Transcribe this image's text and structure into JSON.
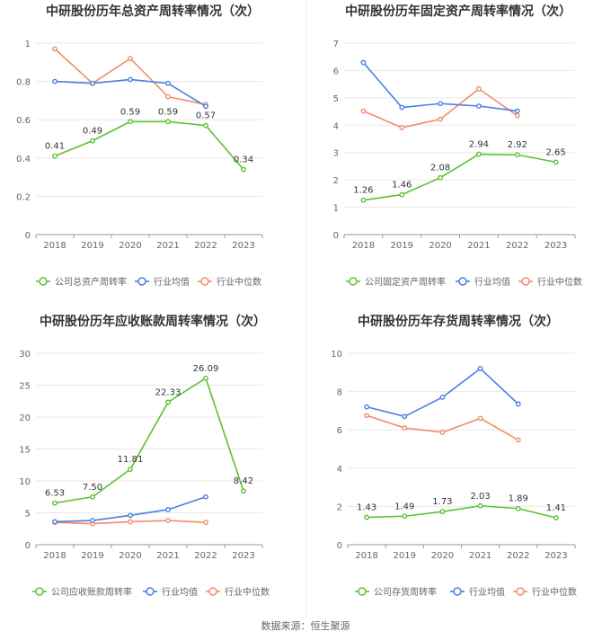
{
  "colors": {
    "company": "#5cc233",
    "industry_avg": "#4a7fe0",
    "industry_median": "#f28c6b",
    "grid": "#e8e8e8",
    "axis": "#999999",
    "text": "#666666",
    "title": "#333333"
  },
  "source_text": "数据来源：恒生聚源",
  "chart_data": [
    {
      "type": "line",
      "title": "中研股份历年总资产周转率情况（次）",
      "categories": [
        "2018",
        "2019",
        "2020",
        "2021",
        "2022",
        "2023"
      ],
      "ylim": [
        0,
        1
      ],
      "yticks": [
        "0",
        "0.2",
        "0.4",
        "0.6",
        "0.8",
        "1"
      ],
      "series": [
        {
          "name": "公司总资产周转率",
          "key": "company",
          "values": [
            0.41,
            0.49,
            0.59,
            0.59,
            0.57,
            0.34
          ],
          "labels": [
            "0.41",
            "0.49",
            "0.59",
            "0.59",
            "0.57",
            "0.34"
          ]
        },
        {
          "name": "行业均值",
          "key": "industry_avg",
          "values": [
            0.8,
            0.79,
            0.81,
            0.79,
            0.67,
            null
          ]
        },
        {
          "name": "行业中位数",
          "key": "industry_median",
          "values": [
            0.97,
            0.79,
            0.92,
            0.72,
            0.68,
            null
          ]
        }
      ]
    },
    {
      "type": "line",
      "title": "中研股份历年固定资产周转率情况（次）",
      "categories": [
        "2018",
        "2019",
        "2020",
        "2021",
        "2022",
        "2023"
      ],
      "ylim": [
        0,
        7
      ],
      "yticks": [
        "0",
        "1",
        "2",
        "3",
        "4",
        "5",
        "6",
        "7"
      ],
      "series": [
        {
          "name": "公司固定资产周转率",
          "key": "company",
          "values": [
            1.26,
            1.46,
            2.08,
            2.94,
            2.92,
            2.65
          ],
          "labels": [
            "1.26",
            "1.46",
            "2.08",
            "2.94",
            "2.92",
            "2.65"
          ]
        },
        {
          "name": "行业均值",
          "key": "industry_avg",
          "values": [
            6.29,
            4.65,
            4.79,
            4.7,
            4.52,
            null
          ]
        },
        {
          "name": "行业中位数",
          "key": "industry_median",
          "values": [
            4.52,
            3.91,
            4.22,
            5.33,
            4.35,
            null
          ]
        }
      ]
    },
    {
      "type": "line",
      "title": "中研股份历年应收账款周转率情况（次）",
      "categories": [
        "2018",
        "2019",
        "2020",
        "2021",
        "2022",
        "2023"
      ],
      "ylim": [
        0,
        30
      ],
      "yticks": [
        "0",
        "5",
        "10",
        "15",
        "20",
        "25",
        "30"
      ],
      "series": [
        {
          "name": "公司应收账款周转率",
          "key": "company",
          "values": [
            6.53,
            7.5,
            11.81,
            22.33,
            26.09,
            8.42
          ],
          "labels": [
            "6.53",
            "7.50",
            "11.81",
            "22.33",
            "26.09",
            "8.42"
          ]
        },
        {
          "name": "行业均值",
          "key": "industry_avg",
          "values": [
            3.6,
            3.8,
            4.6,
            5.5,
            7.5,
            null
          ]
        },
        {
          "name": "行业中位数",
          "key": "industry_median",
          "values": [
            3.5,
            3.3,
            3.6,
            3.8,
            3.5,
            null
          ]
        }
      ]
    },
    {
      "type": "line",
      "title": "中研股份历年存货周转率情况（次）",
      "categories": [
        "2018",
        "2019",
        "2020",
        "2021",
        "2022",
        "2023"
      ],
      "ylim": [
        0,
        10
      ],
      "yticks": [
        "0",
        "2",
        "4",
        "6",
        "8",
        "10"
      ],
      "series": [
        {
          "name": "公司存货周转率",
          "key": "company",
          "values": [
            1.43,
            1.49,
            1.73,
            2.03,
            1.89,
            1.41
          ],
          "labels": [
            "1.43",
            "1.49",
            "1.73",
            "2.03",
            "1.89",
            "1.41"
          ]
        },
        {
          "name": "行业均值",
          "key": "industry_avg",
          "values": [
            7.2,
            6.7,
            7.7,
            9.2,
            7.35,
            null
          ]
        },
        {
          "name": "行业中位数",
          "key": "industry_median",
          "values": [
            6.75,
            6.1,
            5.87,
            6.6,
            5.47,
            null
          ]
        }
      ]
    }
  ]
}
